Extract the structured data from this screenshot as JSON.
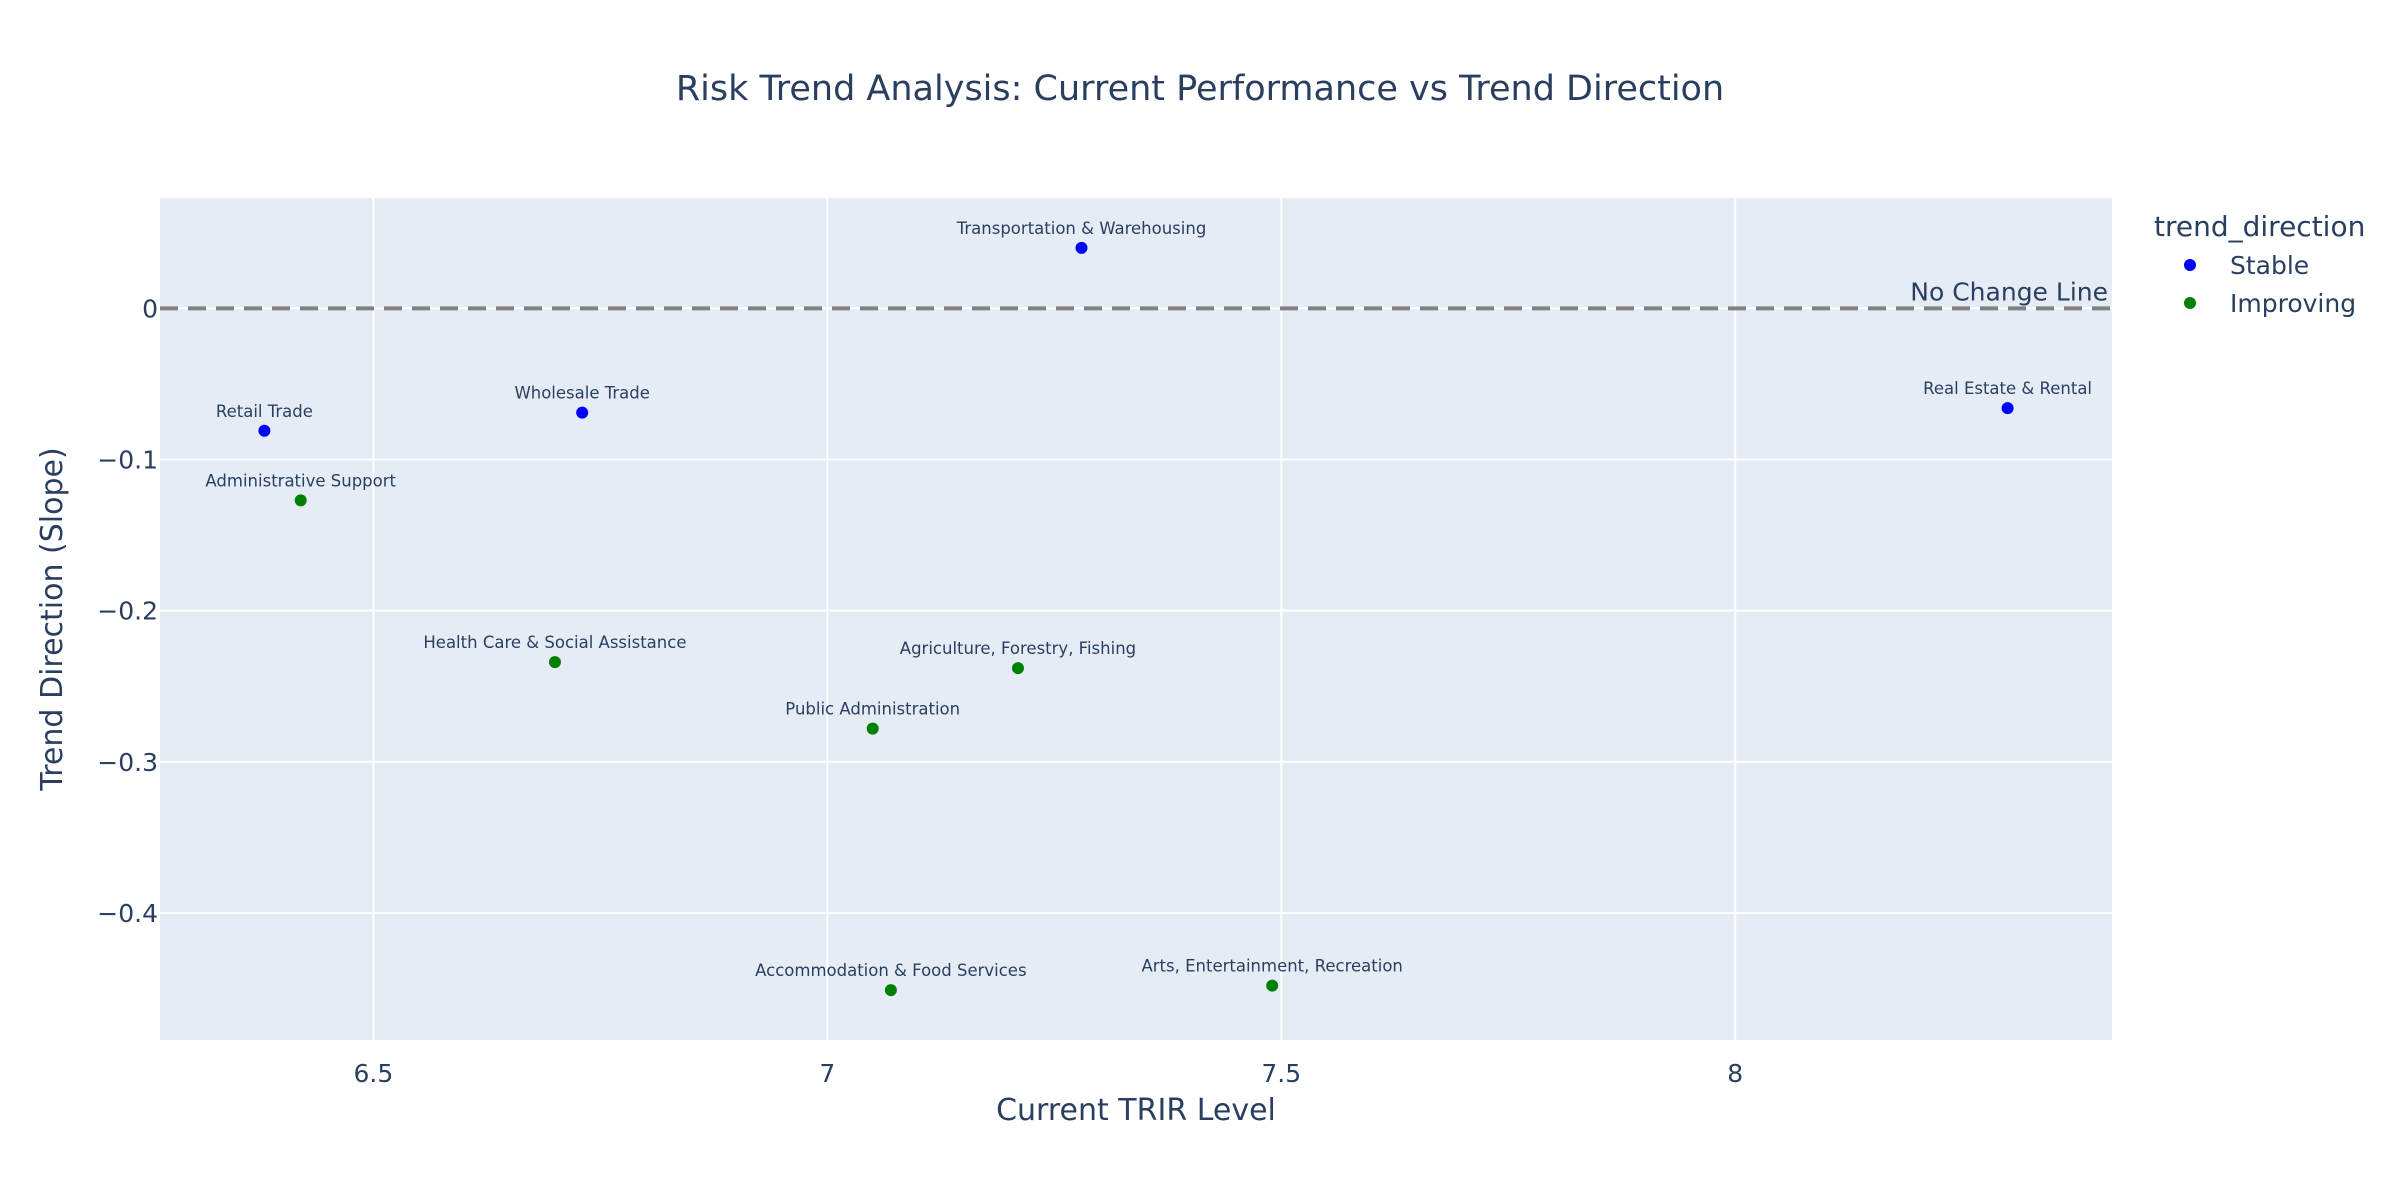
{
  "chart_data": {
    "type": "scatter",
    "title": "Risk Trend Analysis: Current Performance vs Trend Direction",
    "xlabel": "Current TRIR Level",
    "ylabel": "Trend Direction (Slope)",
    "xlim": [
      6.265,
      8.415
    ],
    "ylim": [
      -0.484,
      0.073
    ],
    "x_ticks": [
      6.5,
      7,
      7.5,
      8
    ],
    "x_tick_labels": [
      "6.5",
      "7",
      "7.5",
      "8"
    ],
    "y_ticks": [
      0,
      -0.1,
      -0.2,
      -0.3,
      -0.4
    ],
    "y_tick_labels": [
      "0",
      "−0.1",
      "−0.2",
      "−0.3",
      "−0.4"
    ],
    "grid": true,
    "legend": {
      "title": "trend_direction",
      "position": "top-right"
    },
    "reference_line": {
      "y": 0,
      "style": "dashed",
      "color": "#808080",
      "label": "No Change Line"
    },
    "series": [
      {
        "name": "Stable",
        "color": "#0000ff",
        "points": [
          {
            "x": 7.28,
            "y": 0.04,
            "label": "Transportation & Warehousing"
          },
          {
            "x": 6.38,
            "y": -0.081,
            "label": "Retail Trade"
          },
          {
            "x": 6.73,
            "y": -0.069,
            "label": "Wholesale Trade"
          },
          {
            "x": 8.3,
            "y": -0.066,
            "label": "Real Estate & Rental"
          }
        ]
      },
      {
        "name": "Improving",
        "color": "#008000",
        "points": [
          {
            "x": 6.42,
            "y": -0.127,
            "label": "Administrative Support"
          },
          {
            "x": 6.7,
            "y": -0.234,
            "label": "Health Care & Social Assistance"
          },
          {
            "x": 7.21,
            "y": -0.238,
            "label": "Agriculture, Forestry, Fishing"
          },
          {
            "x": 7.05,
            "y": -0.278,
            "label": "Public Administration"
          },
          {
            "x": 7.07,
            "y": -0.451,
            "label": "Accommodation & Food Services"
          },
          {
            "x": 7.49,
            "y": -0.448,
            "label": "Arts, Entertainment, Recreation"
          }
        ]
      }
    ]
  }
}
